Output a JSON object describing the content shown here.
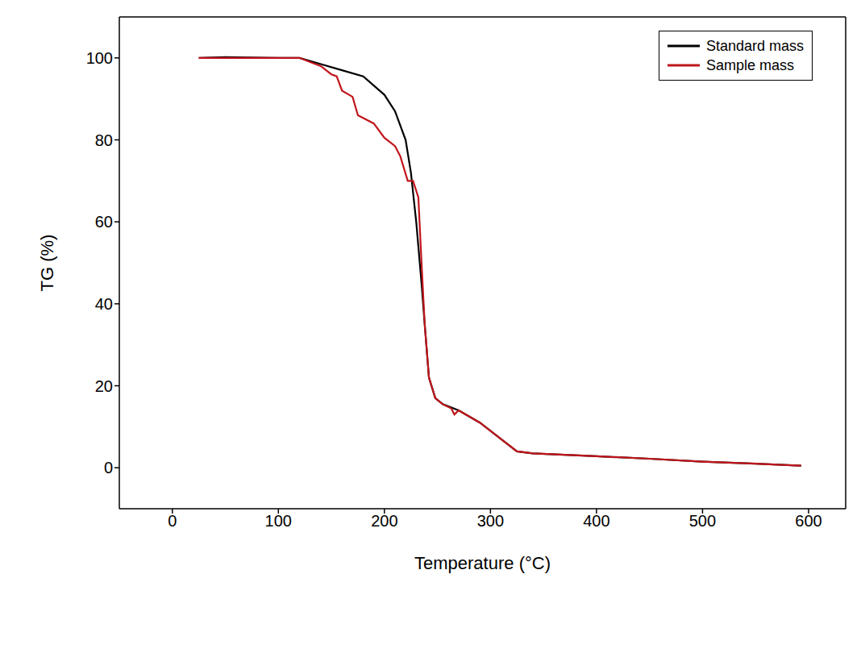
{
  "chart_data": {
    "type": "line",
    "x_label": "Temperature (°C)",
    "y_label": "TG (%)",
    "xlim": [
      -50,
      635
    ],
    "xticks": [
      0,
      100,
      200,
      300,
      400,
      500,
      600
    ],
    "ylim": [
      -10,
      110
    ],
    "yticks": [
      0,
      20,
      40,
      60,
      80,
      100
    ],
    "grid": false,
    "legend": "upper right",
    "series": [
      {
        "name": "Standard mass",
        "color": "#000000",
        "x": [
          25,
          50,
          100,
          120,
          140,
          160,
          180,
          200,
          210,
          220,
          225,
          230,
          235,
          238,
          242,
          248,
          255,
          270,
          290,
          310,
          325,
          340,
          400,
          450,
          500,
          550,
          593
        ],
        "values": [
          100,
          100.2,
          100,
          100,
          98.5,
          97,
          95.5,
          91,
          87,
          80,
          72,
          60,
          45,
          35,
          22,
          17,
          15.5,
          14,
          11,
          7,
          4,
          3.5,
          2.8,
          2.2,
          1.5,
          1,
          0.5
        ]
      },
      {
        "name": "Sample mass",
        "color": "#c0161b",
        "x": [
          25,
          100,
          120,
          130,
          140,
          145,
          150,
          155,
          160,
          170,
          175,
          190,
          200,
          210,
          215,
          222,
          227,
          232,
          235,
          238,
          242,
          248,
          255,
          263,
          266,
          270,
          290,
          310,
          325,
          340,
          400,
          450,
          500,
          550,
          593
        ],
        "values": [
          100,
          100,
          100,
          99,
          98,
          97,
          96,
          95.5,
          92,
          90.5,
          86,
          84,
          80.5,
          78.5,
          76,
          70,
          70,
          66,
          50,
          35,
          22,
          17,
          15.5,
          14.5,
          13,
          14,
          11,
          7,
          4,
          3.5,
          2.8,
          2.2,
          1.5,
          1,
          0.5
        ]
      }
    ]
  }
}
